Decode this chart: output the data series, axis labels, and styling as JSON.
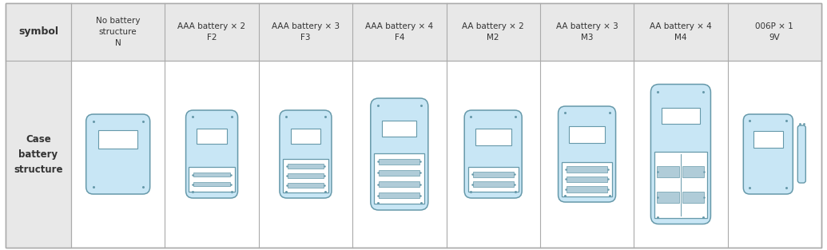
{
  "col_labels": [
    "No battery\nstructure\nN",
    "AAA battery × 2\nF2",
    "AAA battery × 3\nF3",
    "AAA battery × 4\nF4",
    "AA battery × 2\nM2",
    "AA battery × 3\nM3",
    "AA battery × 4\nM4",
    "006P × 1\n9V"
  ],
  "row_label_symbol": "symbol",
  "row_label_case": "Case\nbattery\nstructure",
  "dev_color": "#c8e6f5",
  "dev_border": "#6699aa",
  "inner_color": "#ffffff",
  "comp_color": "#ddeef7",
  "slot_color": "#b0ccd8",
  "hdr_bg": "#e8e8e8",
  "tbl_border": "#aaaaaa",
  "figsize": [
    10.35,
    3.13
  ],
  "dpi": 100
}
